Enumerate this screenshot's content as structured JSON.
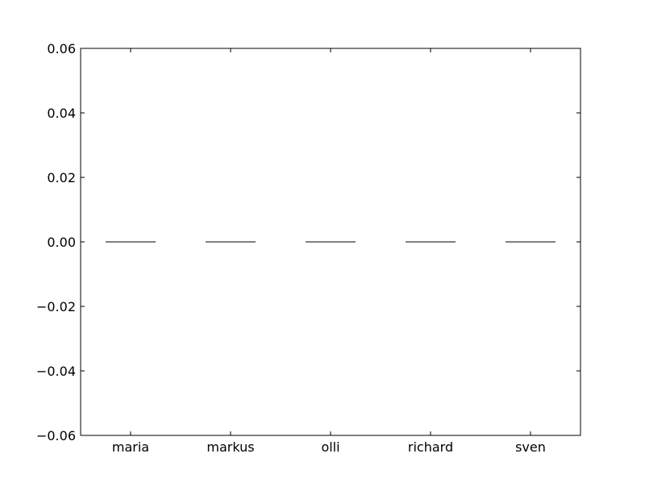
{
  "chart_data": {
    "type": "bar",
    "title": "",
    "xlabel": "",
    "ylabel": "",
    "categories": [
      "maria",
      "markus",
      "olli",
      "richard",
      "sven"
    ],
    "values": [
      0.0,
      0.0,
      0.0,
      0.0,
      0.0
    ],
    "ylim": [
      -0.06,
      0.06
    ],
    "yticks": [
      {
        "value": 0.06,
        "label": "0.06"
      },
      {
        "value": 0.04,
        "label": "0.04"
      },
      {
        "value": 0.02,
        "label": "0.02"
      },
      {
        "value": 0.0,
        "label": "0.00"
      },
      {
        "value": -0.02,
        "label": "−0.02"
      },
      {
        "value": -0.04,
        "label": "−0.04"
      },
      {
        "value": -0.06,
        "label": "−0.06"
      }
    ],
    "grid": false,
    "legend": "none",
    "colors": {
      "bar_edge": "#000000",
      "bar_fill": "#0000ff",
      "axes": "#000000",
      "background": "#ffffff"
    }
  }
}
